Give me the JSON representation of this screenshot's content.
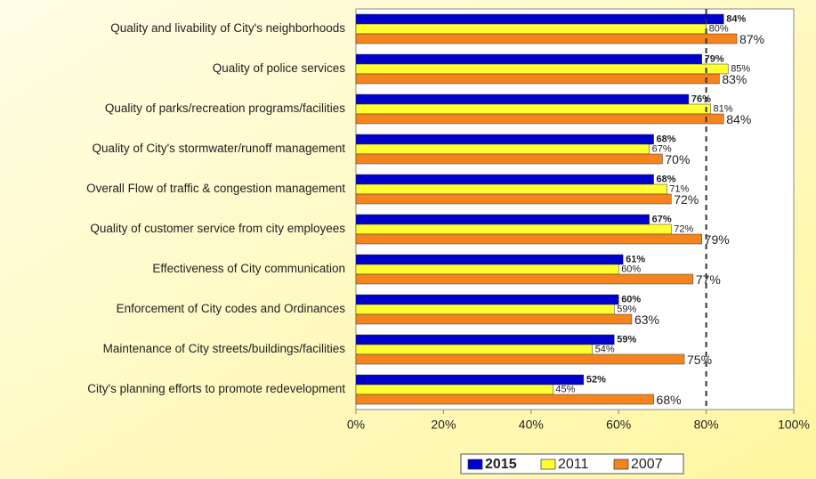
{
  "chart_data": {
    "type": "hbar",
    "categories": [
      "Quality and livability of City's neighborhoods",
      "Quality of police services",
      "Quality of parks/recreation programs/facilities",
      "Quality of City's stormwater/runoff management",
      "Overall Flow of traffic & congestion management",
      "Quality of customer service from city employees",
      "Effectiveness of City communication",
      "Enforcement of City codes and Ordinances",
      "Maintenance of City streets/buildings/facilities",
      "City's planning efforts to promote redevelopment"
    ],
    "series": [
      {
        "name": "2015",
        "color": "#0000cc",
        "values": [
          84,
          79,
          76,
          68,
          68,
          67,
          61,
          60,
          59,
          52
        ],
        "value_labels": [
          "84%",
          "79%",
          "76%",
          "68%",
          "68%",
          "67%",
          "61%",
          "60%",
          "59%",
          "52%"
        ]
      },
      {
        "name": "2011",
        "color": "#ffff33",
        "values": [
          80,
          85,
          81,
          67,
          71,
          72,
          60,
          59,
          54,
          45
        ],
        "value_labels": [
          "80%",
          "85%",
          "81%",
          "67%",
          "71%",
          "72%",
          "60%",
          "59%",
          "54%",
          "45%"
        ]
      },
      {
        "name": "2007",
        "color": "#f5841f",
        "values": [
          87,
          83,
          84,
          70,
          72,
          79,
          77,
          63,
          75,
          68
        ],
        "value_labels": [
          "87%",
          "83%",
          "84%",
          "70%",
          "72%",
          "79%",
          "77%",
          "63%",
          "75%",
          "68%"
        ]
      }
    ],
    "xlim": [
      0,
      100
    ],
    "xticks": [
      {
        "value": 0,
        "label": "0%"
      },
      {
        "value": 20,
        "label": "20%"
      },
      {
        "value": 40,
        "label": "40%"
      },
      {
        "value": 60,
        "label": "60%"
      },
      {
        "value": 80,
        "label": "80%"
      },
      {
        "value": 100,
        "label": "100%"
      }
    ],
    "reference_line": 80,
    "legend": "bottom"
  }
}
